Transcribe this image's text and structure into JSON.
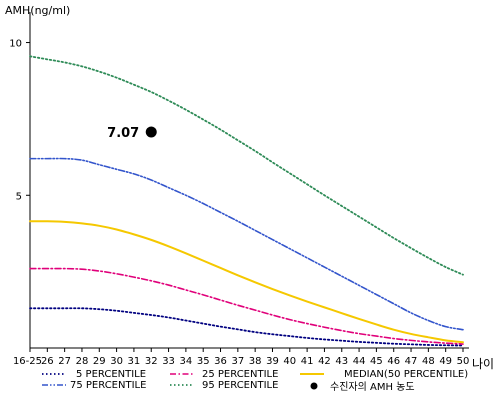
{
  "chart_data": {
    "type": "line",
    "title": "",
    "ylabel": "AMH(ng/ml)",
    "xlabel": "나이",
    "x": [
      "16-25",
      "26",
      "27",
      "28",
      "29",
      "30",
      "31",
      "32",
      "33",
      "34",
      "35",
      "36",
      "37",
      "38",
      "39",
      "40",
      "41",
      "42",
      "43",
      "44",
      "45",
      "46",
      "47",
      "48",
      "49",
      "50"
    ],
    "yticks": [
      5,
      10
    ],
    "ylim": [
      0,
      11
    ],
    "grid": false,
    "legend_position": "bottom",
    "series": [
      {
        "name": "5 PERCENTILE",
        "color": "#000080",
        "dash": "dotted",
        "values": [
          1.3,
          1.3,
          1.3,
          1.3,
          1.27,
          1.22,
          1.15,
          1.08,
          1.0,
          0.9,
          0.8,
          0.7,
          0.61,
          0.52,
          0.45,
          0.39,
          0.33,
          0.28,
          0.24,
          0.2,
          0.17,
          0.14,
          0.12,
          0.1,
          0.09,
          0.08
        ]
      },
      {
        "name": "25 PERCENTILE",
        "color": "#e0007a",
        "dash": "dashdot",
        "values": [
          2.6,
          2.6,
          2.6,
          2.58,
          2.52,
          2.43,
          2.32,
          2.2,
          2.06,
          1.9,
          1.74,
          1.57,
          1.4,
          1.24,
          1.08,
          0.93,
          0.8,
          0.68,
          0.57,
          0.47,
          0.39,
          0.31,
          0.25,
          0.2,
          0.16,
          0.13
        ]
      },
      {
        "name": "MEDIAN(50 PERCENTILE)",
        "color": "#f5c800",
        "dash": "solid",
        "values": [
          4.15,
          4.15,
          4.13,
          4.08,
          4.0,
          3.88,
          3.72,
          3.54,
          3.33,
          3.1,
          2.86,
          2.62,
          2.38,
          2.15,
          1.93,
          1.72,
          1.52,
          1.33,
          1.14,
          0.95,
          0.77,
          0.6,
          0.46,
          0.35,
          0.25,
          0.19
        ]
      },
      {
        "name": "75 PERCENTILE",
        "color": "#3355cc",
        "dash": "dashdotdot",
        "values": [
          6.2,
          6.2,
          6.2,
          6.15,
          6.0,
          5.85,
          5.7,
          5.5,
          5.25,
          5.0,
          4.73,
          4.44,
          4.15,
          3.85,
          3.55,
          3.25,
          2.95,
          2.65,
          2.35,
          2.05,
          1.75,
          1.45,
          1.15,
          0.9,
          0.7,
          0.6
        ]
      },
      {
        "name": "95 PERCENTILE",
        "color": "#2e8b57",
        "dash": "dotted",
        "values": [
          9.55,
          9.45,
          9.35,
          9.22,
          9.05,
          8.85,
          8.62,
          8.38,
          8.1,
          7.8,
          7.48,
          7.15,
          6.8,
          6.45,
          6.08,
          5.72,
          5.36,
          5.0,
          4.65,
          4.3,
          3.95,
          3.6,
          3.27,
          2.95,
          2.65,
          2.4
        ]
      }
    ],
    "patient_point": {
      "name": "수진자의 AMH 농도",
      "x": "32",
      "y": 7.07,
      "label": "7.07",
      "color": "#000000"
    }
  }
}
